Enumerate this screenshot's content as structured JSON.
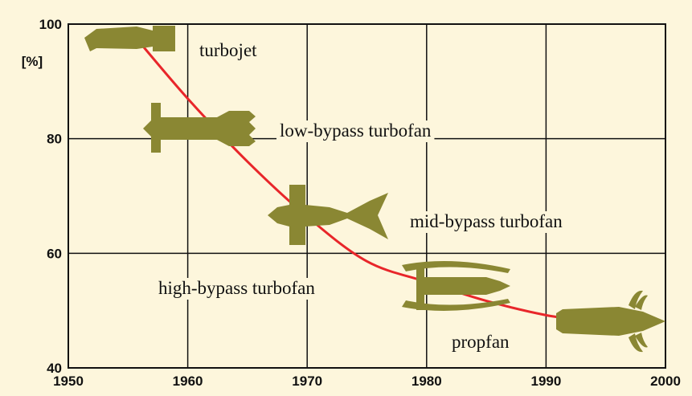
{
  "chart_data": {
    "type": "line",
    "ylabel": "[%]",
    "x": [
      1955.5,
      1960,
      1965,
      1970,
      1975,
      1980,
      1985,
      1990,
      1993
    ],
    "series": [
      {
        "color": "#e8262a",
        "values": [
          98,
          87,
          76,
          66.4,
          58.6,
          55,
          51.7,
          49.2,
          48.4
        ]
      }
    ],
    "xlim": [
      1950,
      2000
    ],
    "xticks": [
      1950,
      1960,
      1970,
      1980,
      1990,
      2000
    ],
    "ylim": [
      40,
      100
    ],
    "yticks": [
      40,
      60,
      80,
      100
    ],
    "grid": true,
    "annotations": [
      "turbojet",
      "low-bypass turbofan",
      "mid-bypass turbofan",
      "high-bypass turbofan",
      "propfan"
    ]
  }
}
